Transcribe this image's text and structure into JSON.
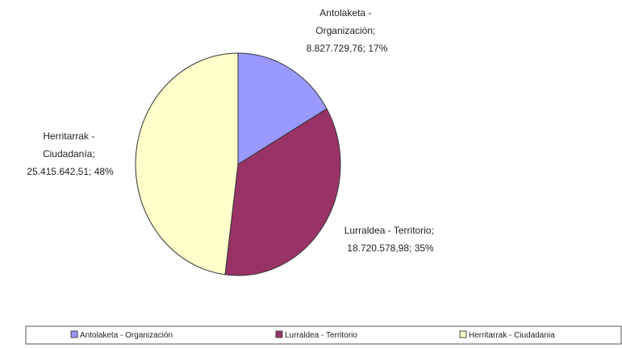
{
  "chart_data": {
    "type": "pie",
    "slices": [
      {
        "name": "Antolaketa - Organización",
        "label_lines": [
          "Antolaketa -",
          "Organización;",
          "8.827.729,76; 17%"
        ],
        "value": 8827729.76,
        "percent": 17,
        "color": "#9999ff"
      },
      {
        "name": "Lurraldea - Territorio",
        "label_lines": [
          "Lurraldea - Territorio;",
          "18.720.578,98; 35%"
        ],
        "value": 18720578.98,
        "percent": 35,
        "color": "#993366"
      },
      {
        "name": "Herritarrak - Ciudadanía",
        "label_lines": [
          "Herritarrak -",
          "Ciudadanía;",
          "25.415.642,51; 48%"
        ],
        "value": 25415642.51,
        "percent": 48,
        "color": "#ffffcc"
      }
    ],
    "legend": {
      "position": "bottom",
      "entries": [
        "Antolaketa - Organización",
        "Lurraldea - Territorio",
        "Herritarrak - Ciudadania"
      ]
    }
  }
}
